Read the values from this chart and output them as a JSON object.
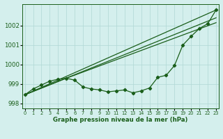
{
  "title": "Graphe pression niveau de la mer (hPa)",
  "x_ticks": [
    0,
    1,
    2,
    3,
    4,
    5,
    6,
    7,
    8,
    9,
    10,
    11,
    12,
    13,
    14,
    15,
    16,
    17,
    18,
    19,
    20,
    21,
    22,
    23
  ],
  "ylim": [
    997.75,
    1003.1
  ],
  "xlim": [
    -0.3,
    23.3
  ],
  "yticks": [
    998,
    999,
    1000,
    1001,
    1002
  ],
  "background_color": "#d4efed",
  "grid_color": "#b0d8d4",
  "line_color": "#1a5e1a",
  "curve_data": [
    [
      0,
      998.45
    ],
    [
      1,
      998.75
    ],
    [
      2,
      998.95
    ],
    [
      3,
      999.15
    ],
    [
      4,
      999.25
    ],
    [
      5,
      999.3
    ],
    [
      6,
      999.2
    ],
    [
      7,
      998.85
    ],
    [
      8,
      998.75
    ],
    [
      9,
      998.7
    ],
    [
      10,
      998.6
    ],
    [
      11,
      998.65
    ],
    [
      12,
      998.7
    ],
    [
      13,
      998.55
    ],
    [
      14,
      998.65
    ],
    [
      15,
      998.8
    ],
    [
      16,
      999.35
    ],
    [
      17,
      999.45
    ],
    [
      18,
      999.95
    ],
    [
      19,
      1001.0
    ],
    [
      20,
      1001.45
    ],
    [
      21,
      1001.85
    ],
    [
      22,
      1002.1
    ],
    [
      23,
      1002.8
    ]
  ],
  "line1": [
    [
      0,
      998.45
    ],
    [
      23,
      1002.8
    ]
  ],
  "line2": [
    [
      0,
      998.45
    ],
    [
      23,
      1002.4
    ]
  ],
  "line3": [
    [
      0,
      998.45
    ],
    [
      5,
      999.3
    ],
    [
      23,
      1002.15
    ]
  ]
}
